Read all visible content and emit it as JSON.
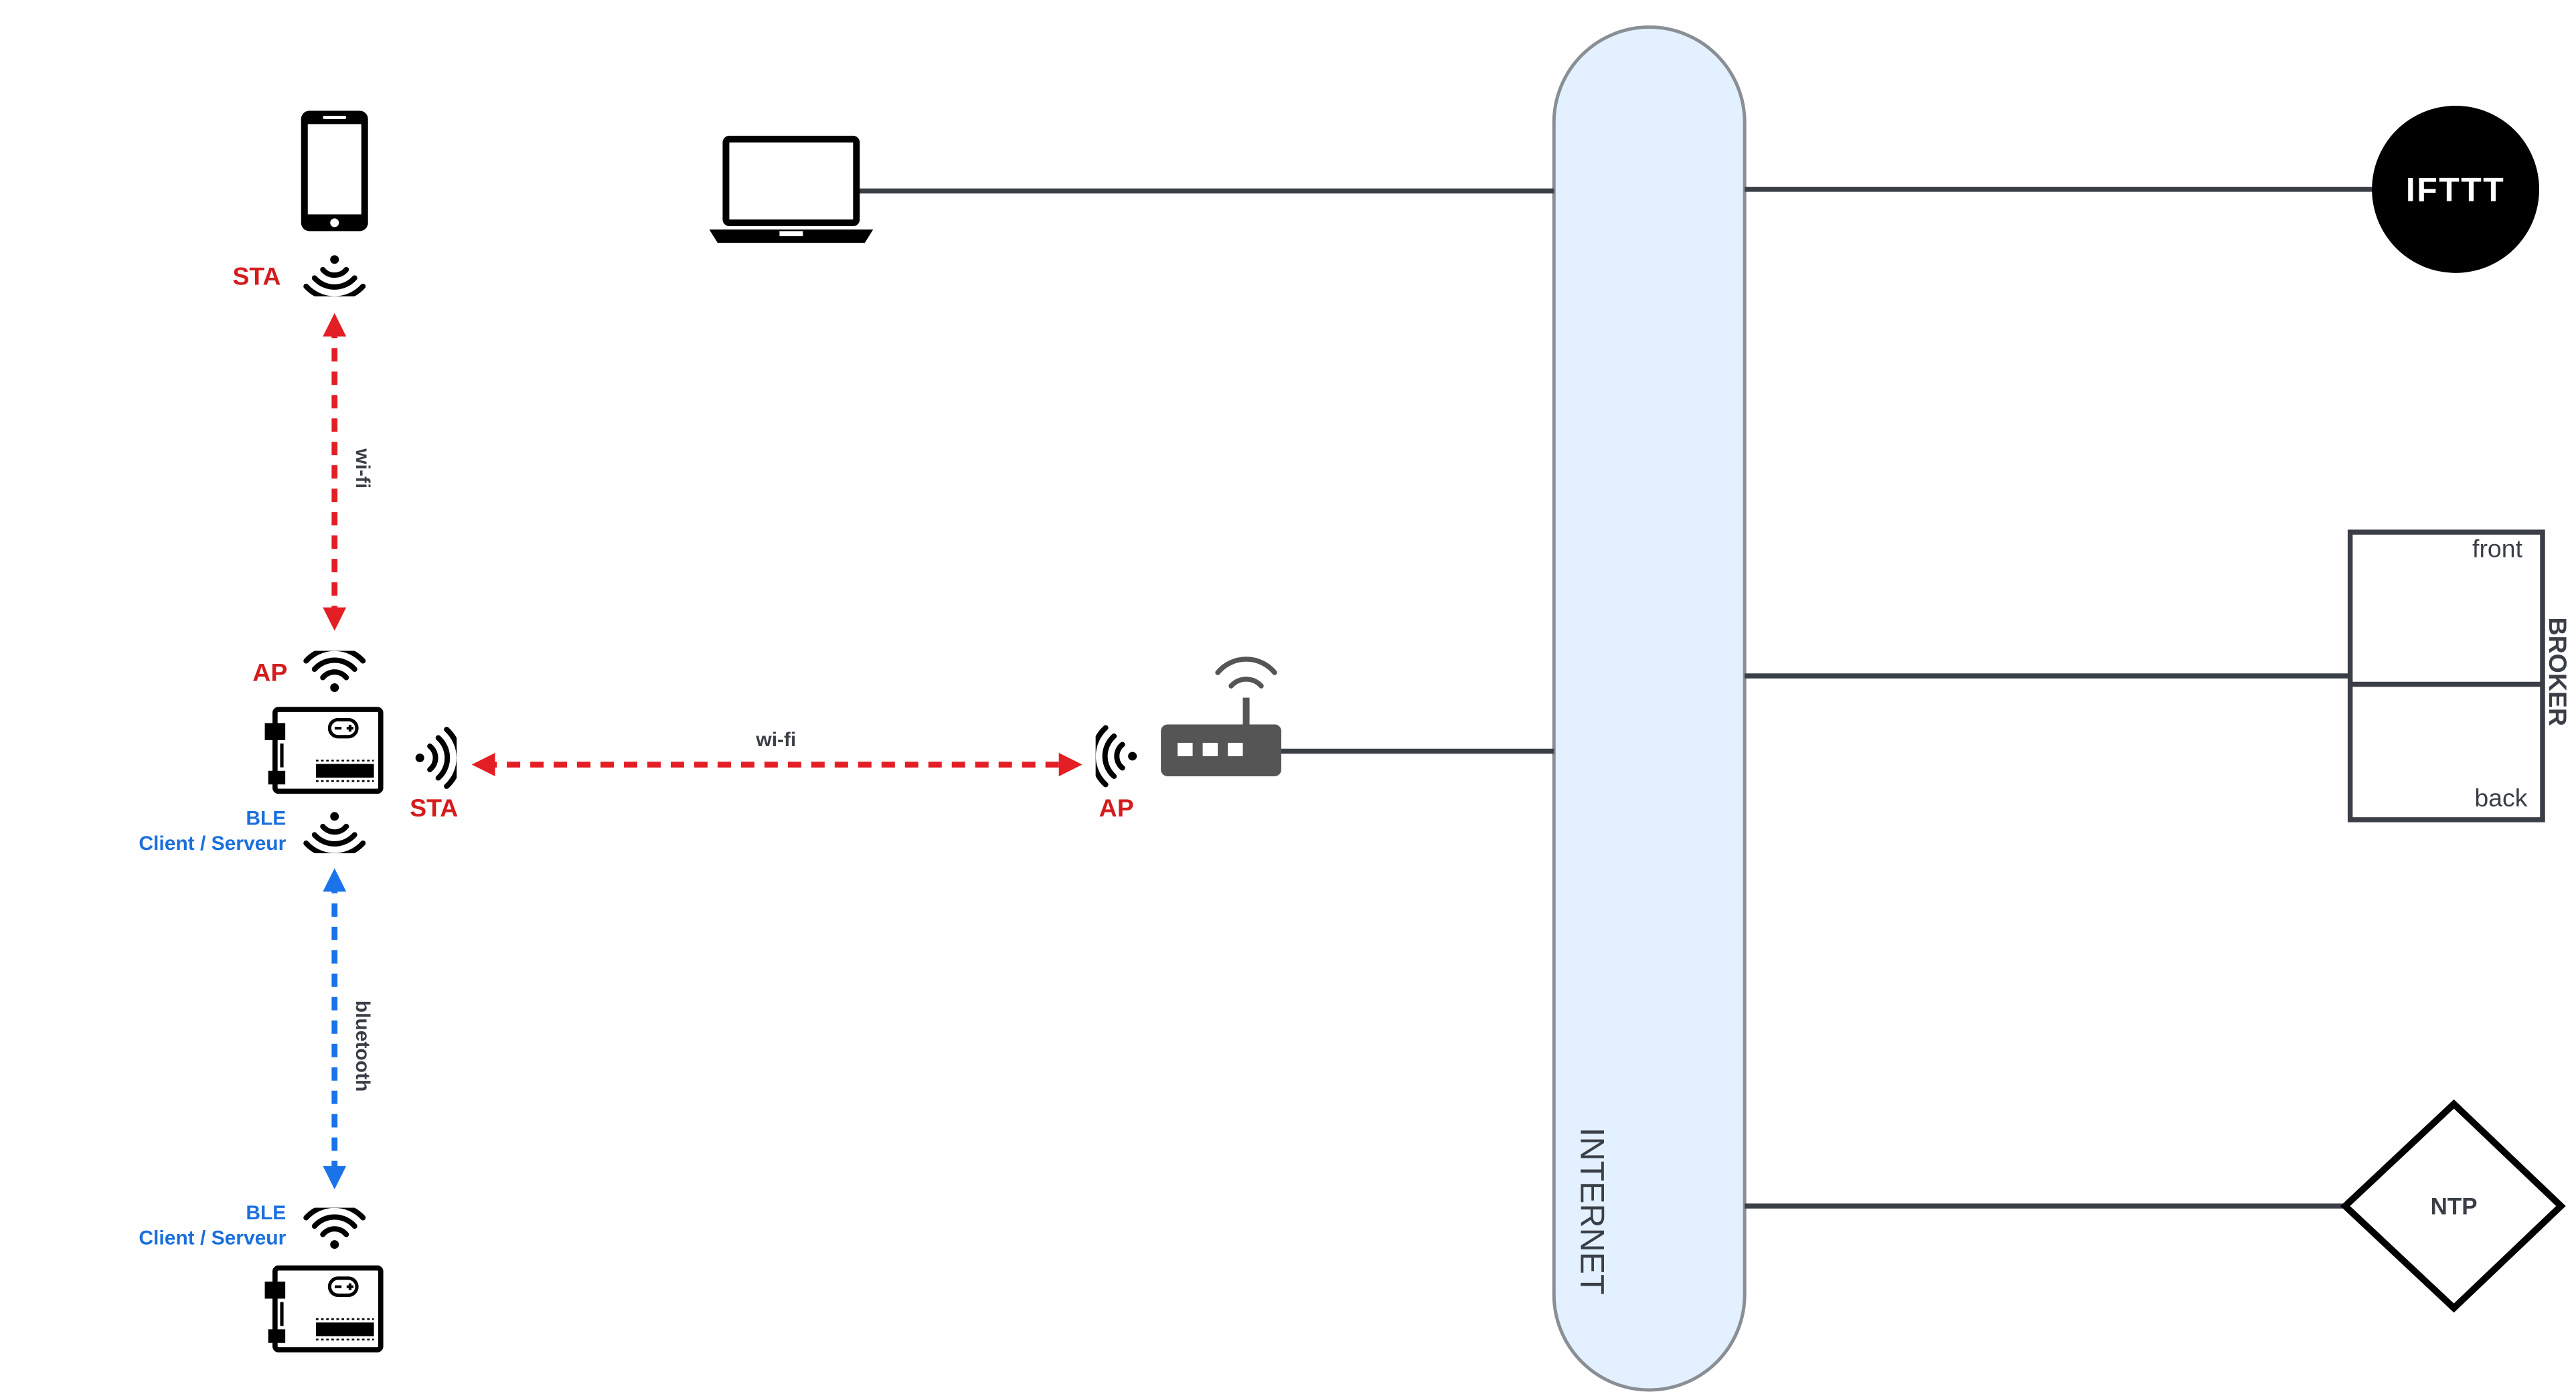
{
  "colors": {
    "wifi_link": "#e31e24",
    "ble_link": "#1a73e8",
    "wire": "#3a3f47",
    "internet_fill": "#e3f0ff",
    "internet_stroke": "#8a8f96",
    "label_red": "#d41c1c",
    "label_blue": "#1a6fdc",
    "label_dark": "#3a3f47"
  },
  "nodes": {
    "phone": {
      "icon": "smartphone-icon",
      "role_label": "STA"
    },
    "laptop": {
      "icon": "laptop-icon"
    },
    "esp_main": {
      "icon": "arduino-board-icon",
      "ap_label": "AP",
      "sta_label": "STA",
      "ble_label": "BLE",
      "ble_sub_label": "Client / Serveur"
    },
    "esp_secondary": {
      "icon": "arduino-board-icon",
      "ble_label": "BLE",
      "ble_sub_label": "Client / Serveur"
    },
    "router": {
      "icon": "router-icon",
      "role_label": "AP"
    },
    "internet": {
      "label": "INTERNET"
    },
    "ifttt": {
      "label": "IFTTT"
    },
    "broker": {
      "label": "BROKER",
      "front_label": "front",
      "back_label": "back"
    },
    "ntp": {
      "label": "NTP"
    }
  },
  "links": {
    "phone_esp": {
      "label": "wi-fi",
      "style": "dashed-bidirectional"
    },
    "esp_router": {
      "label": "wi-fi",
      "style": "dashed-bidirectional"
    },
    "esp_esp": {
      "label": "bluetooth",
      "style": "dashed-bidirectional"
    }
  }
}
